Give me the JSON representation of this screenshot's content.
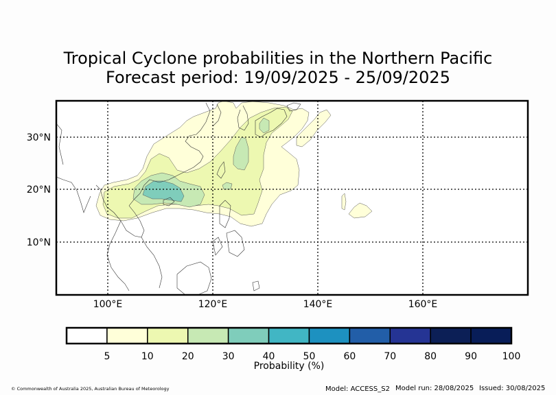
{
  "title": {
    "line1": "Tropical Cyclone probabilities in the Northern Pacific",
    "line2": "Forecast period: 19/09/2025 - 25/09/2025"
  },
  "map": {
    "lat_labels": [
      "30°N",
      "20°N",
      "10°N"
    ],
    "lon_labels": [
      "100°E",
      "120°E",
      "140°E",
      "160°E"
    ],
    "gridlines": "dotted",
    "extent": {
      "lon": [
        90,
        180
      ],
      "lat": [
        0,
        37
      ]
    }
  },
  "colorbar": {
    "label": "Probability (%)",
    "ticks": [
      "5",
      "10",
      "20",
      "30",
      "40",
      "50",
      "60",
      "70",
      "80",
      "90",
      "100"
    ],
    "colors": [
      "#ffffff",
      "#ffffd9",
      "#edf8b1",
      "#c7e9b4",
      "#7fcdbb",
      "#41b6c4",
      "#1d91c0",
      "#225ea8",
      "#253494",
      "#0c1f56",
      "#081d58"
    ]
  },
  "footer": {
    "copyright": "© Commonwealth of Australia 2025, Australian Bureau of Meteorology",
    "model": "Model: ACCESS_S2",
    "model_run": "Model run: 28/08/2025",
    "issued": "Issued: 30/08/2025"
  }
}
